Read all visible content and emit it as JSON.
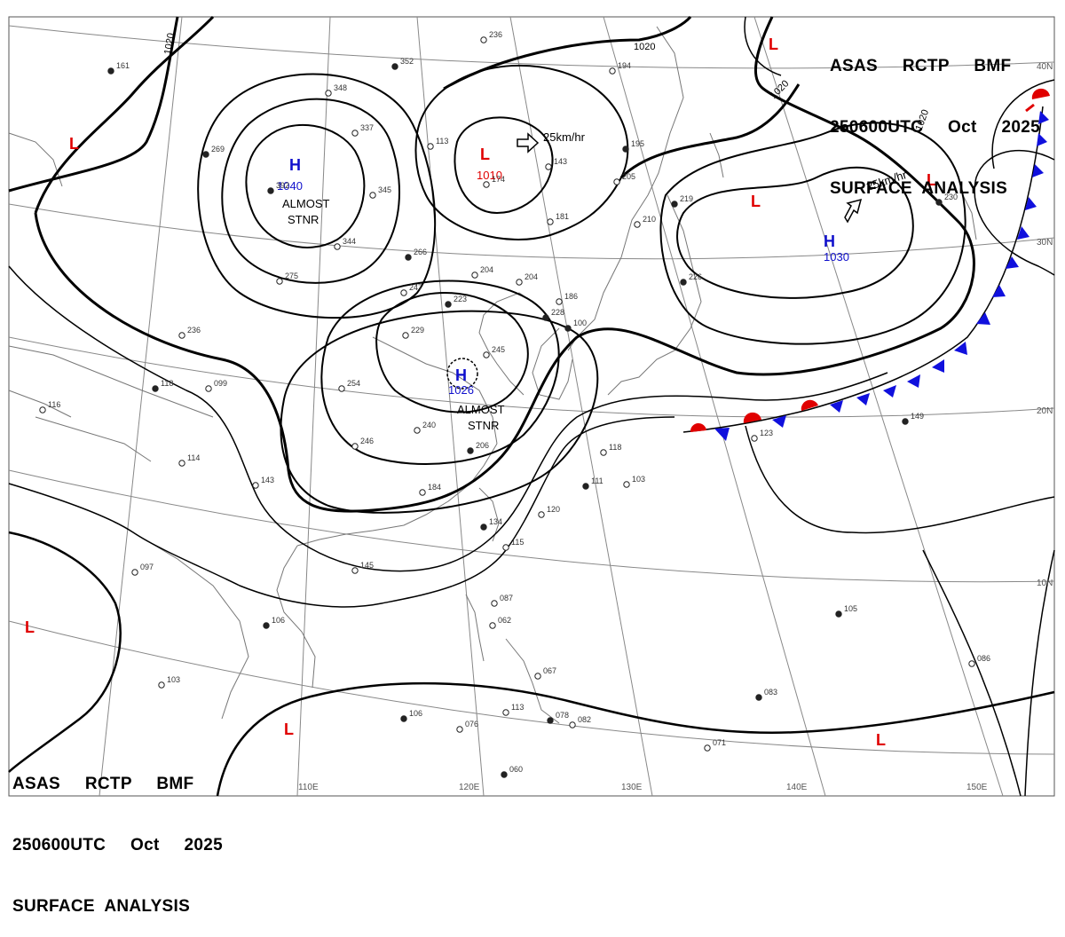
{
  "header": {
    "line1": "ASAS     RCTP     BMF",
    "line2": "250600UTC     Oct     2025",
    "line3": "SURFACE  ANALYSIS"
  },
  "isobar_labels": [
    "1020",
    "1020",
    "1020",
    "1020"
  ],
  "highs": [
    {
      "letter": "H",
      "pressure": "1040",
      "note1": "ALMOST",
      "note2": "STNR"
    },
    {
      "letter": "H",
      "pressure": "1026",
      "note1": "ALMOST",
      "note2": "STNR"
    },
    {
      "letter": "H",
      "pressure": "1030"
    }
  ],
  "lows": [
    {
      "letter": "L",
      "pressure": "1010",
      "motion": "25km/hr"
    },
    {
      "letter": "L"
    },
    {
      "letter": "L"
    },
    {
      "letter": "L"
    },
    {
      "letter": "L"
    },
    {
      "letter": "L"
    },
    {
      "letter": "L"
    },
    {
      "letter": "L"
    }
  ],
  "motion_high": "25km/hr",
  "lat_labels": [
    "40N",
    "30N",
    "20N",
    "10N"
  ],
  "lon_labels": [
    "110E",
    "120E",
    "130E",
    "140E",
    "150E"
  ],
  "stations": [
    "161",
    "236",
    "194",
    "352",
    "348",
    "337",
    "392",
    "345",
    "344",
    "266",
    "113",
    "143",
    "195",
    "205",
    "181",
    "219",
    "204",
    "204",
    "223",
    "247",
    "229",
    "226",
    "236",
    "186",
    "228",
    "245",
    "254",
    "269",
    "240",
    "246",
    "206",
    "184",
    "118",
    "111",
    "103",
    "123",
    "149",
    "115",
    "120",
    "134",
    "143",
    "145",
    "106",
    "087",
    "062",
    "105",
    "097",
    "114",
    "118",
    "099",
    "103",
    "106",
    "076",
    "113",
    "078",
    "082",
    "067",
    "083",
    "086",
    "071",
    "060",
    "275",
    "116",
    "230",
    "210",
    "174",
    "100"
  ],
  "colors": {
    "high": "#1010cc",
    "low": "#e00000",
    "cold_front": "#1010dd",
    "warm_front": "#e00000"
  }
}
